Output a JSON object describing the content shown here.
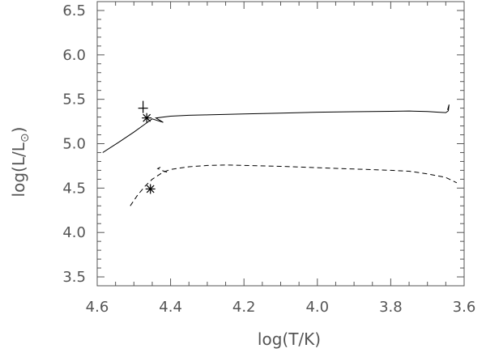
{
  "chart_data": {
    "type": "line",
    "title": "",
    "xlabel": "log(T/K)",
    "ylabel": "log(L/L",
    "ylabel_sub": "⊙",
    "ylabel_close": ")",
    "xlim": [
      4.6,
      3.6
    ],
    "ylim": [
      3.4,
      6.6
    ],
    "x_ticks": [
      4.6,
      4.4,
      4.2,
      4.0,
      3.8,
      3.6
    ],
    "x_tick_labels": [
      "4.6",
      "4.4",
      "4.2",
      "4.0",
      "3.8",
      "3.6"
    ],
    "y_ticks": [
      3.5,
      4.0,
      4.5,
      5.0,
      5.5,
      6.0,
      6.5
    ],
    "y_tick_labels": [
      "3.5",
      "4.0",
      "4.5",
      "5.0",
      "5.5",
      "6.0",
      "6.5"
    ],
    "grid": false,
    "series": [
      {
        "style": "solid",
        "color": "#000000",
        "x": [
          4.585,
          4.54,
          4.5,
          4.47,
          4.45,
          4.42,
          4.44,
          4.4,
          4.35,
          4.3,
          4.2,
          4.1,
          4.0,
          3.9,
          3.8,
          3.75,
          3.7,
          3.67,
          3.65,
          3.643,
          3.641,
          3.645
        ],
        "y": [
          4.9,
          5.02,
          5.13,
          5.22,
          5.28,
          5.24,
          5.29,
          5.31,
          5.32,
          5.325,
          5.335,
          5.345,
          5.355,
          5.36,
          5.365,
          5.368,
          5.362,
          5.355,
          5.35,
          5.37,
          5.44,
          5.38
        ]
      },
      {
        "style": "dashed",
        "color": "#000000",
        "x": [
          4.51,
          4.49,
          4.47,
          4.45,
          4.42,
          4.4,
          4.35,
          4.3,
          4.25,
          4.2,
          4.1,
          4.0,
          3.9,
          3.8,
          3.75,
          3.7,
          3.65,
          3.62
        ],
        "y": [
          4.3,
          4.42,
          4.52,
          4.6,
          4.68,
          4.71,
          4.74,
          4.755,
          4.76,
          4.755,
          4.745,
          4.73,
          4.715,
          4.7,
          4.69,
          4.66,
          4.62,
          4.56
        ]
      },
      {
        "style": "dashed",
        "color": "#000000",
        "x": [
          4.41,
          4.425,
          4.435,
          4.425
        ],
        "y": [
          4.68,
          4.7,
          4.72,
          4.74
        ]
      }
    ],
    "markers": [
      {
        "symbol": "plus",
        "x": 4.475,
        "y": 5.4
      },
      {
        "symbol": "asterisk",
        "x": 4.465,
        "y": 5.29
      },
      {
        "symbol": "asterisk",
        "x": 4.455,
        "y": 4.49
      }
    ]
  }
}
